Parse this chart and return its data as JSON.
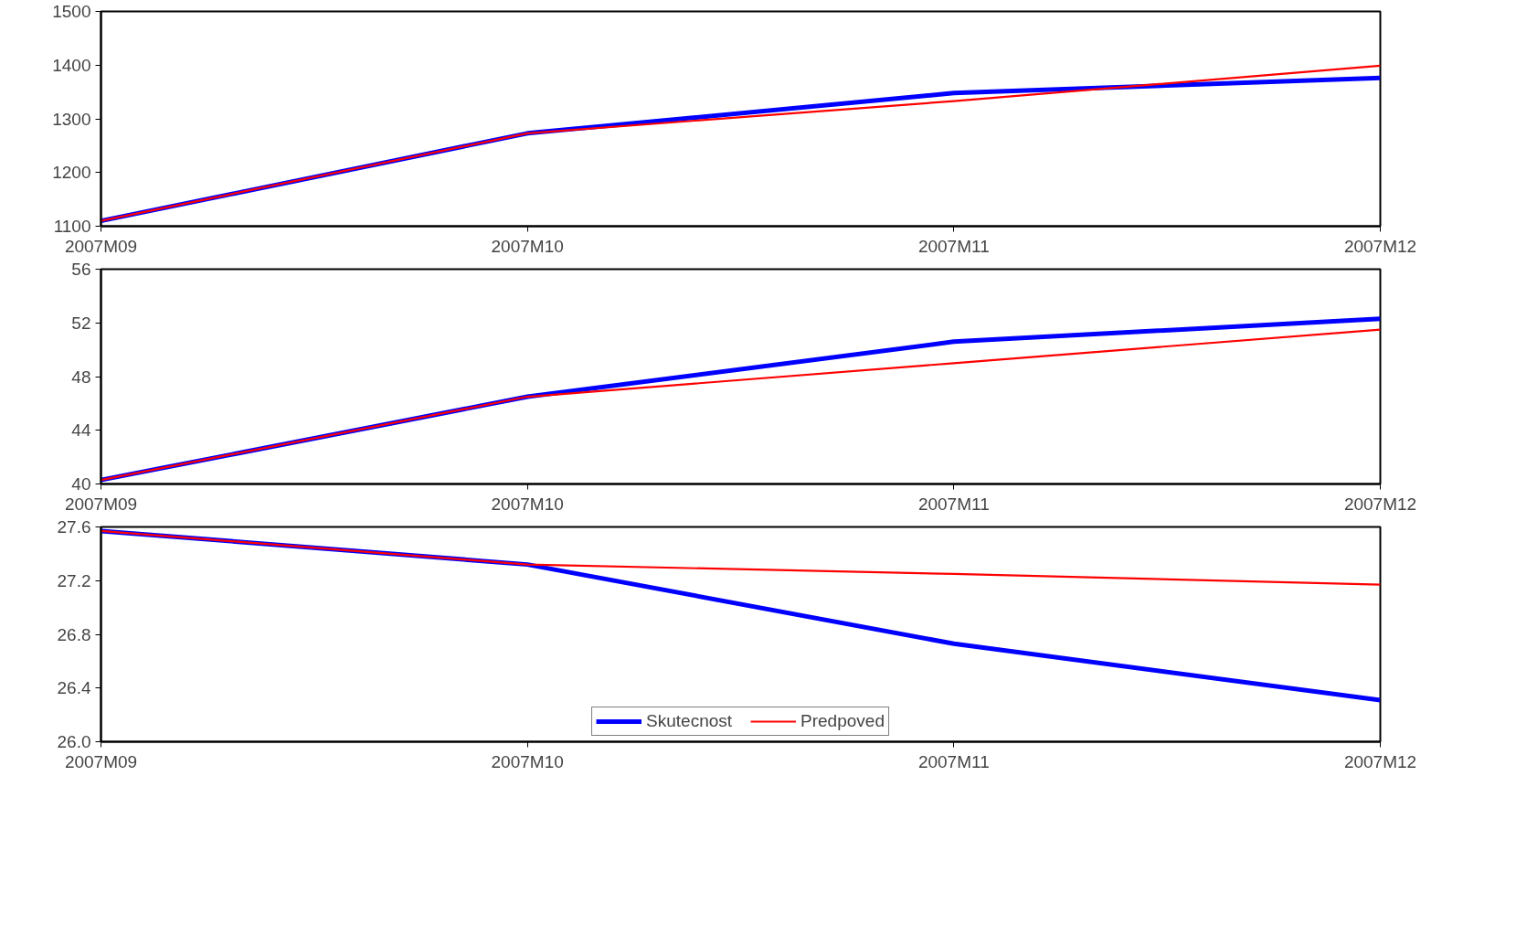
{
  "chart_data": [
    {
      "type": "line",
      "categories": [
        "2007M09",
        "2007M10",
        "2007M11",
        "2007M12"
      ],
      "ylim": [
        1100,
        1500
      ],
      "yticks": [
        1100,
        1200,
        1300,
        1400,
        1500
      ],
      "grid": false,
      "series": [
        {
          "color": "#0000ff",
          "values": [
            1110,
            1273,
            1348,
            1376
          ]
        },
        {
          "color": "#ff0000",
          "values": [
            1110,
            1273,
            1333,
            1399
          ]
        }
      ]
    },
    {
      "type": "line",
      "categories": [
        "2007M09",
        "2007M10",
        "2007M11",
        "2007M12"
      ],
      "ylim": [
        40,
        56
      ],
      "yticks": [
        40,
        44,
        48,
        52,
        56
      ],
      "grid": false,
      "series": [
        {
          "color": "#0000ff",
          "values": [
            40.3,
            46.5,
            50.6,
            52.3
          ]
        },
        {
          "color": "#ff0000",
          "values": [
            40.3,
            46.5,
            49.0,
            51.5
          ]
        }
      ]
    },
    {
      "type": "line",
      "categories": [
        "2007M09",
        "2007M10",
        "2007M11",
        "2007M12"
      ],
      "ylim": [
        26.0,
        27.6
      ],
      "yticks": [
        {
          "value": 26.0,
          "label": "26.0"
        },
        26.4,
        26.8,
        27.2,
        27.6
      ],
      "grid": false,
      "legend": "bottom",
      "series": [
        {
          "name": "Skutecnost",
          "color": "#0000ff",
          "values": [
            27.57,
            27.32,
            26.73,
            26.31
          ]
        },
        {
          "name": "Predpoved",
          "color": "#ff0000",
          "values": [
            27.57,
            27.32,
            27.25,
            27.17
          ]
        }
      ]
    }
  ]
}
